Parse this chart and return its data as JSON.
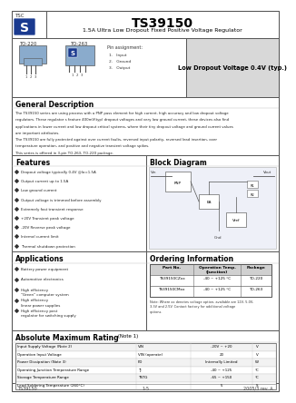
{
  "title": "TS39150",
  "subtitle": "1.5A Ultra Low Dropout Fixed Positive Voltage Regulator",
  "highlight": "Low Dropout Voltage 0.4V (typ.)",
  "pin_assignment": [
    "1.   Input",
    "2.   Ground",
    "3.   Output"
  ],
  "package_labels": [
    "TO-220",
    "TO-263"
  ],
  "features": [
    "Dropout voltage typically 0.4V @Io=1.5A",
    "Output current up to 1.5A",
    "Low ground current",
    "Output voltage is trimmed before assembly",
    "Extremely fast transient response",
    "+20V Transient peak voltage",
    "-20V Reverse peak voltage",
    "Internal current limit",
    "Thermal shutdown protection"
  ],
  "applications": [
    "Battery power equipment",
    "Automotive electronics",
    "High efficiency \"Green\" computer system",
    "High efficiency linear power supplies",
    "High efficiency post regulator for switching supply"
  ],
  "ordering_rows": [
    [
      "TS39150CZxx",
      "-40 ~ +125 °C",
      "TO-220"
    ],
    [
      "TS39150CMxx",
      "-40 ~ +125 °C",
      "TO-263"
    ]
  ],
  "ordering_note_lines": [
    "Note: Where xx denotes voltage option, available are 12V, 5.0V,",
    "3.3V and 2.5V. Contact factory for additional voltage",
    "options."
  ],
  "abs_max_rows": [
    [
      "Input Supply Voltage (Note 2)",
      "VIN",
      "-20V ~ +20",
      "V"
    ],
    [
      "Operation Input Voltage",
      "VIN (operate)",
      "20",
      "V"
    ],
    [
      "Power Dissipation (Note 3)",
      "PD",
      "Internally Limited",
      "W"
    ],
    [
      "Operating Junction Temperature Range",
      "TJ",
      "-40 ~ +125",
      "°C"
    ],
    [
      "Storage Temperature Range",
      "TSTG",
      "-65 ~ +150",
      "°C"
    ],
    [
      "Lead Soldering Temperature (260°C)",
      "",
      "5",
      "S"
    ]
  ],
  "footer_left": "TS39150",
  "footer_center": "1-5",
  "footer_right": "2005/3 rev. A",
  "desc_lines": [
    "The TS39150 series are using process with a PNP pass element for high current, high accuracy and low dropout voltage",
    "regulators. These regulator s feature 400mV(typ) dropout voltages and very low ground current, these devices also find",
    "applications in lower current and low dropout critical systems, where their tiny dropout voltage and ground current values",
    "are important attributes.",
    "The TS39150 are fully protected against over current faults, reversed input polarity, reversed lead insertion, over",
    "temperature operation, and positive and negative transient voltage spikes.",
    "This series is offered in 3-pin TO-263, TO-220 package."
  ]
}
